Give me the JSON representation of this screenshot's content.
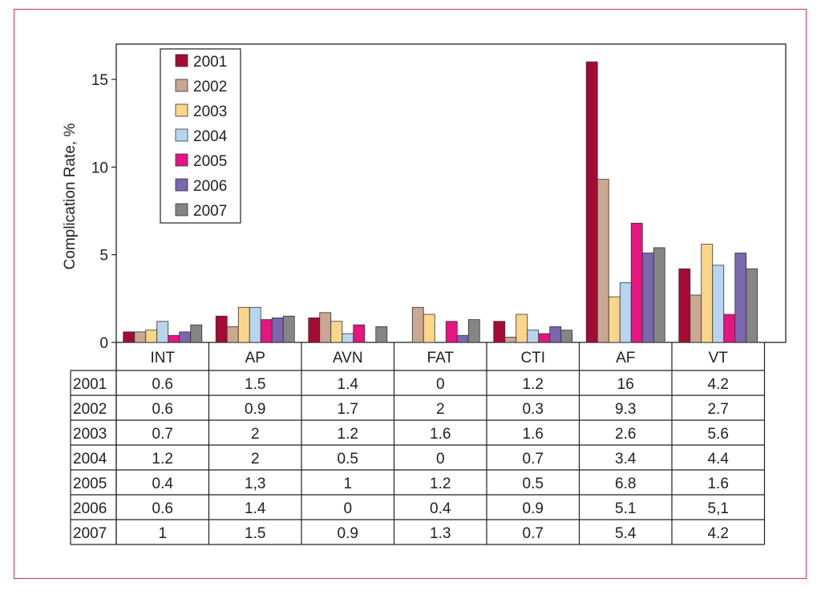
{
  "chart_data": {
    "type": "bar",
    "ylabel": "Complication Rate, %",
    "xlabel": "",
    "ylim": [
      0,
      17
    ],
    "yticks": [
      0,
      5,
      10,
      15
    ],
    "grid": false,
    "legend_position": "top-left",
    "categories": [
      "INT",
      "AP",
      "AVN",
      "FAT",
      "CTI",
      "AF",
      "VT"
    ],
    "series": [
      {
        "name": "2001",
        "color": "#a50a35",
        "values": [
          0.6,
          1.5,
          1.4,
          0,
          1.2,
          16,
          4.2
        ],
        "labels": [
          "0.6",
          "1.5",
          "1.4",
          "0",
          "1.2",
          "16",
          "4.2"
        ]
      },
      {
        "name": "2002",
        "color": "#c9a792",
        "values": [
          0.6,
          0.9,
          1.7,
          2,
          0.3,
          9.3,
          2.7
        ],
        "labels": [
          "0.6",
          "0.9",
          "1.7",
          "2",
          "0.3",
          "9.3",
          "2.7"
        ]
      },
      {
        "name": "2003",
        "color": "#fbd68a",
        "values": [
          0.7,
          2,
          1.2,
          1.6,
          1.6,
          2.6,
          5.6
        ],
        "labels": [
          "0.7",
          "2",
          "1.2",
          "1.6",
          "1.6",
          "2.6",
          "5.6"
        ]
      },
      {
        "name": "2004",
        "color": "#b7d5ee",
        "values": [
          1.2,
          2,
          0.5,
          0,
          0.7,
          3.4,
          4.4
        ],
        "labels": [
          "1.2",
          "2",
          "0.5",
          "0",
          "0.7",
          "3.4",
          "4.4"
        ]
      },
      {
        "name": "2005",
        "color": "#e6157f",
        "values": [
          0.4,
          1.3,
          1,
          1.2,
          0.5,
          6.8,
          1.6
        ],
        "labels": [
          "0.4",
          "1,3",
          "1",
          "1.2",
          "0.5",
          "6.8",
          "1.6"
        ]
      },
      {
        "name": "2006",
        "color": "#7b66b0",
        "values": [
          0.6,
          1.4,
          0,
          0.4,
          0.9,
          5.1,
          5.1
        ],
        "labels": [
          "0.6",
          "1.4",
          "0",
          "0.4",
          "0.9",
          "5.1",
          "5,1"
        ]
      },
      {
        "name": "2007",
        "color": "#858585",
        "values": [
          1,
          1.5,
          0.9,
          1.3,
          0.7,
          5.4,
          4.2
        ],
        "labels": [
          "1",
          "1.5",
          "0.9",
          "1.3",
          "0.7",
          "5.4",
          "4.2"
        ]
      }
    ]
  },
  "frame_color": "#c2345a"
}
